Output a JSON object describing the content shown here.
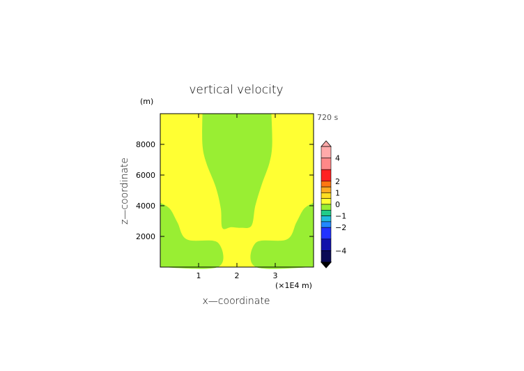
{
  "chart_data": {
    "type": "heatmap",
    "title": "vertical velocity",
    "xlabel": "x—coordinate",
    "ylabel": "z—coordinate",
    "y_unit": "(m)",
    "x_unit": "(×1E4 m)",
    "time_label": "720 s",
    "xlim": [
      0,
      4
    ],
    "ylim": [
      0,
      10000
    ],
    "x_ticks": [
      1,
      2,
      3
    ],
    "x_tick_labels": [
      "1",
      "2",
      "3"
    ],
    "y_ticks": [
      2000,
      4000,
      6000,
      8000
    ],
    "y_tick_labels": [
      "2000",
      "4000",
      "6000",
      "8000"
    ],
    "background_level": {
      "range": [
        0,
        0.5
      ],
      "color": "#ffff33"
    },
    "regions": [
      {
        "level_range": [
          -0.5,
          0
        ],
        "color": "#99ee33",
        "description_points_x_z": [
          [
            1.1,
            10000
          ],
          [
            1.1,
            8000
          ],
          [
            1.2,
            6800
          ],
          [
            1.45,
            5200
          ],
          [
            1.58,
            3800
          ],
          [
            1.62,
            2550
          ],
          [
            1.85,
            2600
          ],
          [
            2.1,
            2560
          ],
          [
            2.38,
            2700
          ],
          [
            2.48,
            4000
          ],
          [
            2.65,
            5400
          ],
          [
            2.85,
            6800
          ],
          [
            2.92,
            8000
          ],
          [
            2.9,
            10000
          ]
        ]
      },
      {
        "level_range": [
          -0.5,
          0
        ],
        "color": "#99ee33",
        "description_points_x_z": [
          [
            0,
            4200
          ],
          [
            0.25,
            3800
          ],
          [
            0.45,
            2900
          ],
          [
            0.7,
            1800
          ],
          [
            1.5,
            1600
          ],
          [
            1.5,
            0
          ],
          [
            0,
            0
          ]
        ]
      },
      {
        "level_range": [
          -0.5,
          0
        ],
        "color": "#99ee33",
        "description_points_x_z": [
          [
            4,
            4200
          ],
          [
            3.75,
            3800
          ],
          [
            3.55,
            2900
          ],
          [
            3.3,
            1800
          ],
          [
            2.5,
            1600
          ],
          [
            2.5,
            0
          ],
          [
            4,
            0
          ]
        ]
      }
    ],
    "colorbar": {
      "labels": [
        "4",
        "2",
        "1",
        "0",
        "−1",
        "−2",
        "−4"
      ],
      "label_values": [
        4,
        2,
        1,
        0,
        -1,
        -2,
        -4
      ],
      "levels": [
        {
          "range": [
            4,
            5
          ],
          "color": "#ffaaaa"
        },
        {
          "range": [
            3,
            4
          ],
          "color": "#ff8888"
        },
        {
          "range": [
            2,
            3
          ],
          "color": "#ff2222"
        },
        {
          "range": [
            1.5,
            2
          ],
          "color": "#ff7711"
        },
        {
          "range": [
            1,
            1.5
          ],
          "color": "#ffaa22"
        },
        {
          "range": [
            0.5,
            1
          ],
          "color": "#ffdd22"
        },
        {
          "range": [
            0,
            0.5
          ],
          "color": "#ffff33"
        },
        {
          "range": [
            -0.5,
            0
          ],
          "color": "#99ee33"
        },
        {
          "range": [
            -1,
            -0.5
          ],
          "color": "#22cc88"
        },
        {
          "range": [
            -1.5,
            -1
          ],
          "color": "#22bbdd"
        },
        {
          "range": [
            -2,
            -1.5
          ],
          "color": "#2288ff"
        },
        {
          "range": [
            -3,
            -2
          ],
          "color": "#2233ff"
        },
        {
          "range": [
            -4,
            -3
          ],
          "color": "#1111aa"
        },
        {
          "range": [
            -5,
            -4
          ],
          "color": "#0a0a55"
        }
      ]
    },
    "grid": false
  }
}
